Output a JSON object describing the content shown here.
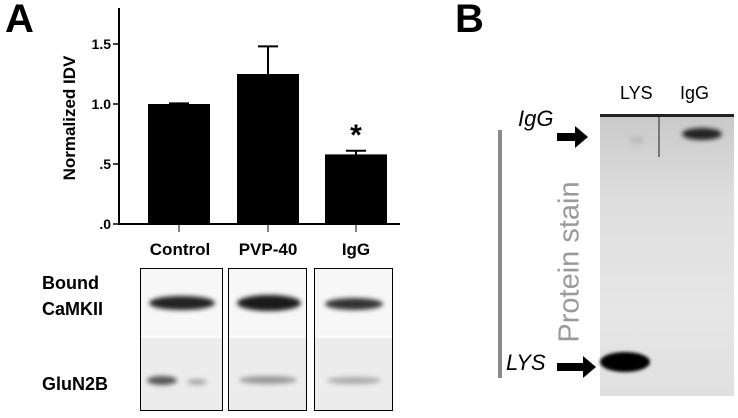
{
  "panel_a": {
    "label": "A",
    "chart_data": {
      "type": "bar",
      "categories": [
        "Control",
        "PVP-40",
        "IgG"
      ],
      "values": [
        1.0,
        1.25,
        0.58
      ],
      "error": [
        0.005,
        0.23,
        0.03
      ],
      "annotations": [
        {
          "category": "IgG",
          "text": "*"
        }
      ],
      "ylabel": "Normalized IDV",
      "xlabel": "",
      "ylim": [
        0,
        1.8
      ],
      "yticks": [
        0,
        0.5,
        1.0,
        1.5
      ],
      "ytick_labels": [
        ".0",
        ".5",
        "1.0",
        "1.5"
      ],
      "grid": false,
      "bar_color": "#000000"
    },
    "blot": {
      "row_labels": [
        "Bound",
        "CaMKII",
        "GluN2B"
      ]
    }
  },
  "panel_b": {
    "label": "B",
    "lane_labels": [
      "LYS",
      "IgG"
    ],
    "marker_labels": [
      "IgG",
      "LYS"
    ],
    "side_label": "Protein stain",
    "side_label_color": "#9a9a9a"
  }
}
